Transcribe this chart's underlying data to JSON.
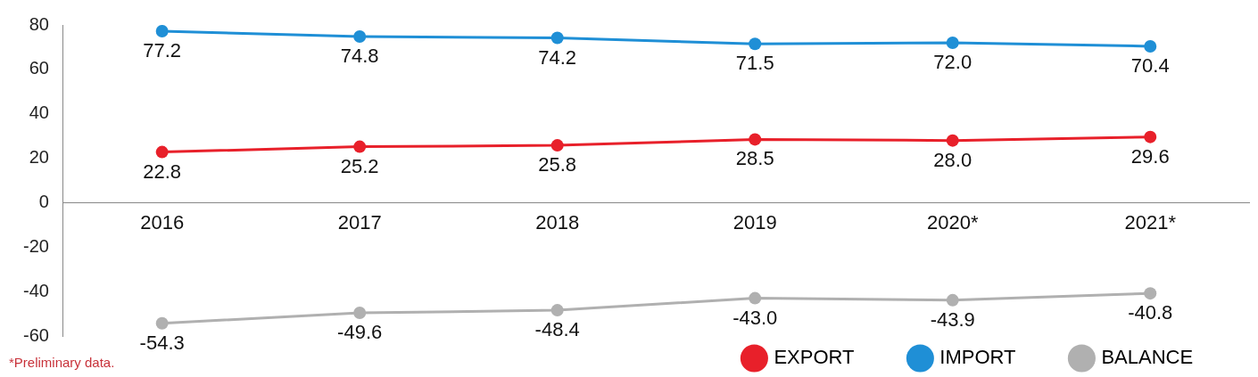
{
  "chart_data": {
    "type": "line",
    "categories": [
      "2016",
      "2017",
      "2018",
      "2019",
      "2020*",
      "2021*"
    ],
    "series": [
      {
        "name": "EXPORT",
        "color": "#e8202a",
        "values": [
          22.8,
          25.2,
          25.8,
          28.5,
          28.0,
          29.6
        ],
        "value_labels": [
          "22.8",
          "25.2",
          "25.8",
          "28.5",
          "28.0",
          "29.6"
        ]
      },
      {
        "name": "IMPORT",
        "color": "#1f8fd6",
        "values": [
          77.2,
          74.8,
          74.2,
          71.5,
          72.0,
          70.4
        ],
        "value_labels": [
          "77.2",
          "74.8",
          "74.2",
          "71.5",
          "72.0",
          "70.4"
        ]
      },
      {
        "name": "BALANCE",
        "color": "#b0b0b0",
        "values": [
          -54.3,
          -49.6,
          -48.4,
          -43.0,
          -43.9,
          -40.8
        ],
        "value_labels": [
          "-54.3",
          "-49.6",
          "-48.4",
          "-43.0",
          "-43.9",
          "-40.8"
        ]
      }
    ],
    "ylim": [
      -60,
      80
    ],
    "yticks": [
      -60,
      -40,
      -20,
      0,
      20,
      40,
      60,
      80
    ],
    "grid": false,
    "legend": "bottom right",
    "marker": "circle",
    "line_style": "solid",
    "annotations": [
      "*Preliminary data."
    ]
  }
}
